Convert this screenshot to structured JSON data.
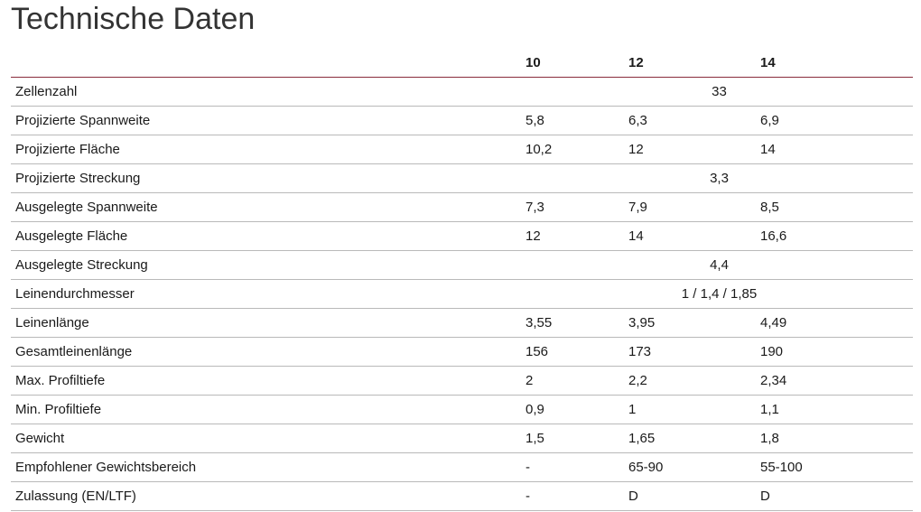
{
  "title": "Technische Daten",
  "table": {
    "headers": [
      "",
      "10",
      "12",
      "14"
    ],
    "rows": [
      {
        "label": "Zellenzahl",
        "span": "33"
      },
      {
        "label": "Projizierte Spannweite",
        "values": [
          "5,8",
          "6,3",
          "6,9"
        ]
      },
      {
        "label": "Projizierte Fläche",
        "values": [
          "10,2",
          "12",
          "14"
        ]
      },
      {
        "label": "Projizierte Streckung",
        "span": "3,3"
      },
      {
        "label": "Ausgelegte Spannweite",
        "values": [
          "7,3",
          "7,9",
          "8,5"
        ]
      },
      {
        "label": "Ausgelegte Fläche",
        "values": [
          "12",
          "14",
          "16,6"
        ]
      },
      {
        "label": "Ausgelegte Streckung",
        "span": "4,4"
      },
      {
        "label": "Leinendurchmesser",
        "span": "1 / 1,4 / 1,85"
      },
      {
        "label": "Leinenlänge",
        "values": [
          "3,55",
          "3,95",
          "4,49"
        ]
      },
      {
        "label": "Gesamtleinenlänge",
        "values": [
          "156",
          "173",
          "190"
        ]
      },
      {
        "label": "Max. Profiltiefe",
        "values": [
          "2",
          "2,2",
          "2,34"
        ]
      },
      {
        "label": "Min. Profiltiefe",
        "values": [
          "0,9",
          "1",
          "1,1"
        ]
      },
      {
        "label": "Gewicht",
        "values": [
          "1,5",
          "1,65",
          "1,8"
        ]
      },
      {
        "label": "Empfohlener Gewichtsbereich",
        "values": [
          "-",
          "65-90",
          "55-100"
        ]
      },
      {
        "label": "Zulassung (EN/LTF)",
        "values": [
          "-",
          "D",
          "D"
        ]
      }
    ]
  }
}
